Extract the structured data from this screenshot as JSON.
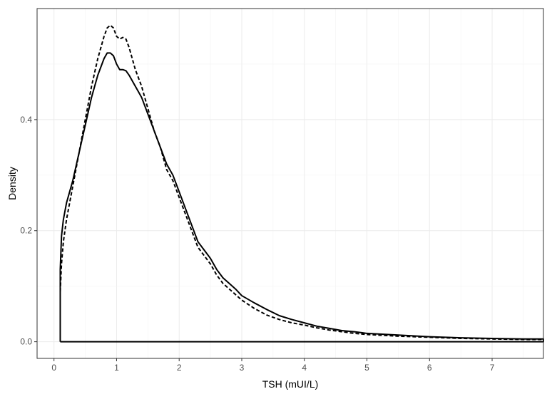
{
  "chart_data": {
    "type": "line",
    "title": "",
    "xlabel": "TSH  (mUI/L)",
    "ylabel": "Density",
    "xlim": [
      -0.27,
      7.82
    ],
    "ylim": [
      -0.03,
      0.6
    ],
    "x_ticks": [
      "0",
      "1",
      "2",
      "3",
      "4",
      "5",
      "6",
      "7"
    ],
    "y_ticks": [
      "0.0",
      "0.2",
      "0.4"
    ],
    "grid": true,
    "legend": "none",
    "series": [
      {
        "style": "solid",
        "color": "#000000",
        "x": [
          0.1,
          0.1,
          0.12,
          0.15,
          0.2,
          0.3,
          0.4,
          0.5,
          0.6,
          0.7,
          0.8,
          0.85,
          0.9,
          0.95,
          1.0,
          1.05,
          1.1,
          1.15,
          1.2,
          1.3,
          1.4,
          1.5,
          1.6,
          1.7,
          1.8,
          1.9,
          2.0,
          2.1,
          2.2,
          2.3,
          2.4,
          2.5,
          2.6,
          2.7,
          2.8,
          2.9,
          3.0,
          3.2,
          3.4,
          3.6,
          3.8,
          4.0,
          4.2,
          4.4,
          4.6,
          4.8,
          5.0,
          5.5,
          6.0,
          6.5,
          7.0,
          7.5,
          7.82,
          7.82,
          0.1
        ],
        "y": [
          0.0,
          0.13,
          0.19,
          0.22,
          0.25,
          0.29,
          0.34,
          0.39,
          0.44,
          0.48,
          0.51,
          0.52,
          0.52,
          0.515,
          0.5,
          0.49,
          0.49,
          0.488,
          0.48,
          0.46,
          0.44,
          0.41,
          0.38,
          0.35,
          0.32,
          0.3,
          0.27,
          0.24,
          0.21,
          0.18,
          0.165,
          0.15,
          0.13,
          0.115,
          0.105,
          0.095,
          0.083,
          0.07,
          0.058,
          0.047,
          0.04,
          0.034,
          0.028,
          0.024,
          0.02,
          0.018,
          0.015,
          0.012,
          0.009,
          0.007,
          0.006,
          0.005,
          0.005,
          0.0,
          0.0
        ]
      },
      {
        "style": "dashed",
        "color": "#000000",
        "x": [
          0.1,
          0.12,
          0.15,
          0.2,
          0.3,
          0.4,
          0.5,
          0.6,
          0.7,
          0.8,
          0.85,
          0.9,
          0.95,
          1.0,
          1.05,
          1.1,
          1.15,
          1.2,
          1.3,
          1.4,
          1.5,
          1.6,
          1.7,
          1.8,
          1.9,
          2.0,
          2.1,
          2.2,
          2.3,
          2.4,
          2.5,
          2.6,
          2.7,
          2.8,
          2.9,
          3.0,
          3.2,
          3.4,
          3.6,
          3.8,
          4.0,
          4.2,
          4.4,
          4.6,
          4.8,
          5.0,
          5.5,
          6.0,
          6.5,
          7.0,
          7.5,
          7.82
        ],
        "y": [
          0.09,
          0.14,
          0.18,
          0.22,
          0.28,
          0.34,
          0.4,
          0.46,
          0.51,
          0.55,
          0.565,
          0.57,
          0.565,
          0.55,
          0.545,
          0.548,
          0.545,
          0.53,
          0.49,
          0.46,
          0.42,
          0.38,
          0.35,
          0.31,
          0.29,
          0.26,
          0.23,
          0.2,
          0.17,
          0.155,
          0.14,
          0.12,
          0.105,
          0.095,
          0.085,
          0.075,
          0.06,
          0.048,
          0.04,
          0.034,
          0.03,
          0.025,
          0.021,
          0.018,
          0.015,
          0.013,
          0.01,
          0.008,
          0.006,
          0.005,
          0.004,
          0.004
        ]
      }
    ]
  }
}
